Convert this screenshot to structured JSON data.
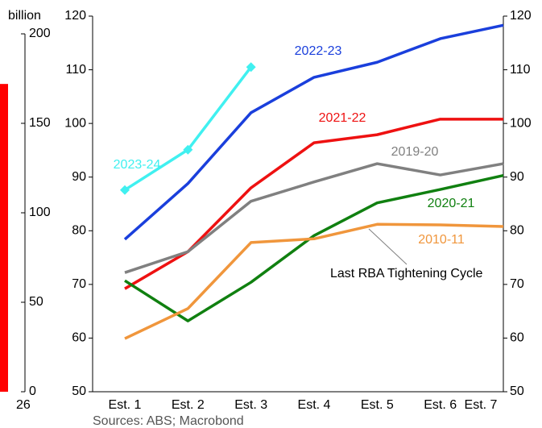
{
  "chart_data": [
    {
      "type": "bar",
      "axis_label": "billion",
      "x_label": "26",
      "values": [
        172
      ],
      "color": "#ff0000",
      "ylim": [
        0,
        200
      ],
      "yticks": [
        0,
        50,
        100,
        150,
        200
      ]
    },
    {
      "type": "line",
      "categories": [
        "Est. 1",
        "Est. 2",
        "Est. 3",
        "Est. 4",
        "Est. 5",
        "Est. 6",
        "Est. 7"
      ],
      "ylim": [
        50,
        120
      ],
      "yticks": [
        50,
        60,
        70,
        80,
        90,
        100,
        110,
        120
      ],
      "y2lim": [
        50,
        120
      ],
      "y2ticks": [
        50,
        60,
        70,
        80,
        90,
        100,
        110,
        120
      ],
      "annotation": "Last RBA Tightening Cycle",
      "source": "Sources: ABS; Macrobond",
      "series": [
        {
          "name": "2022-23",
          "color": "#1a3fdc",
          "values": [
            78.4,
            88.8,
            102,
            108.6,
            111.4,
            115.8,
            118.3
          ]
        },
        {
          "name": "2021-22",
          "color": "#ee1111",
          "values": [
            69.2,
            76.1,
            88,
            96.4,
            97.9,
            100.8,
            100.8
          ]
        },
        {
          "name": "2019-20",
          "color": "#808080",
          "values": [
            72.2,
            76.1,
            85.5,
            89.1,
            92.5,
            90.4,
            92.5
          ]
        },
        {
          "name": "2020-21",
          "color": "#108010",
          "values": [
            70.7,
            63.2,
            70.4,
            79.1,
            85.2,
            87.7,
            90.3
          ]
        },
        {
          "name": "2010-11",
          "color": "#f0963c",
          "values": [
            59.9,
            65.5,
            77.8,
            78.5,
            81.2,
            81.1,
            80.8
          ]
        },
        {
          "name": "2023-24",
          "color": "#40f0f0",
          "marker": "diamond",
          "values": [
            87.6,
            95.1,
            110.5,
            null,
            null,
            null,
            null
          ]
        }
      ]
    }
  ]
}
